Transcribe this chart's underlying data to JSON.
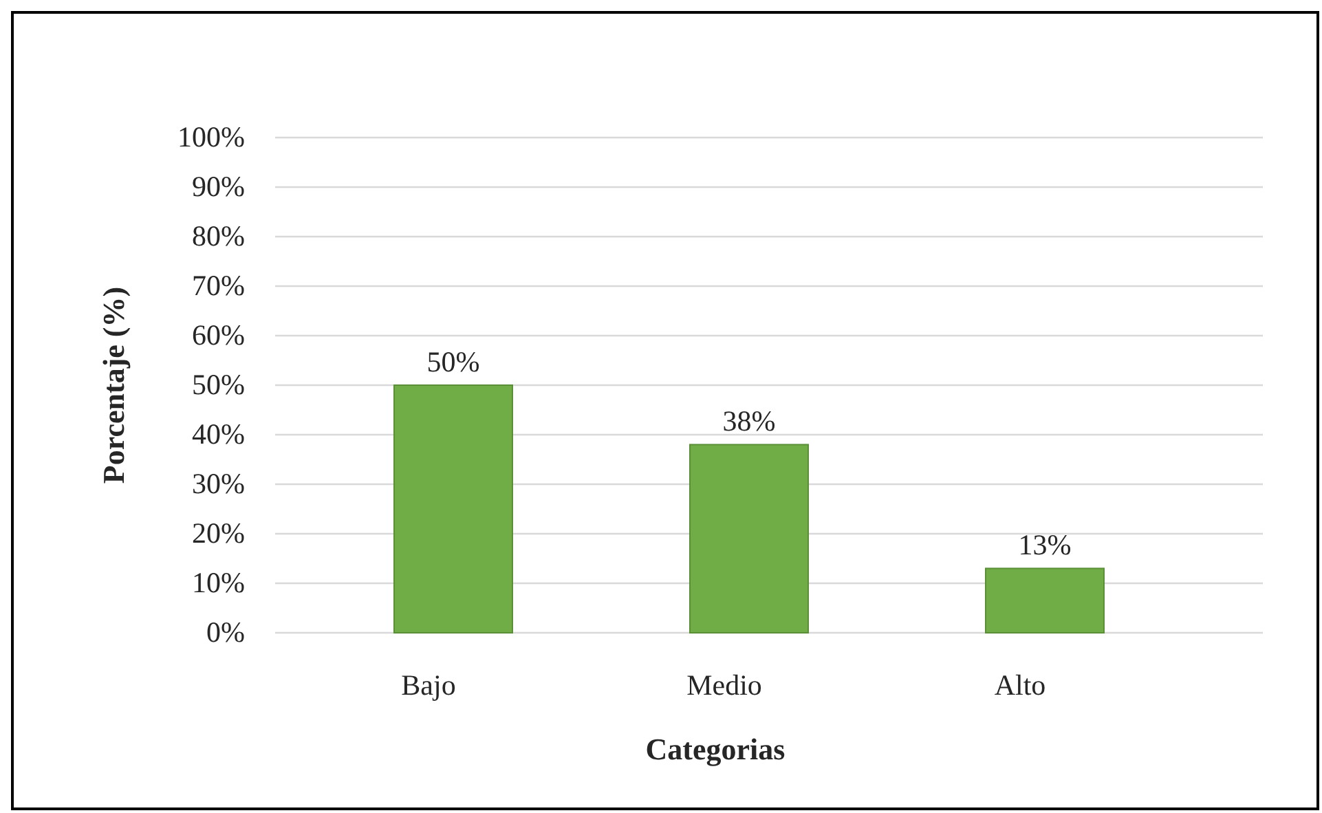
{
  "chart_data": {
    "type": "bar",
    "xlabel": "Categorias",
    "ylabel": "Porcentaje (%)",
    "categories": [
      "Bajo",
      "Medio",
      "Alto"
    ],
    "values": [
      50,
      38,
      13
    ],
    "color": "#70ad47",
    "value_labels": [
      "50%",
      "38%",
      "13%"
    ],
    "ylim": [
      0,
      100
    ],
    "yticks": [
      {
        "value": 0,
        "label": "0%"
      },
      {
        "value": 10,
        "label": "10%"
      },
      {
        "value": 20,
        "label": "20%"
      },
      {
        "value": 30,
        "label": "30%"
      },
      {
        "value": 40,
        "label": "40%"
      },
      {
        "value": 50,
        "label": "50%"
      },
      {
        "value": 60,
        "label": "60%"
      },
      {
        "value": 70,
        "label": "70%"
      },
      {
        "value": 80,
        "label": "80%"
      },
      {
        "value": 90,
        "label": "90%"
      },
      {
        "value": 100,
        "label": "100%"
      }
    ],
    "grid": "y"
  }
}
